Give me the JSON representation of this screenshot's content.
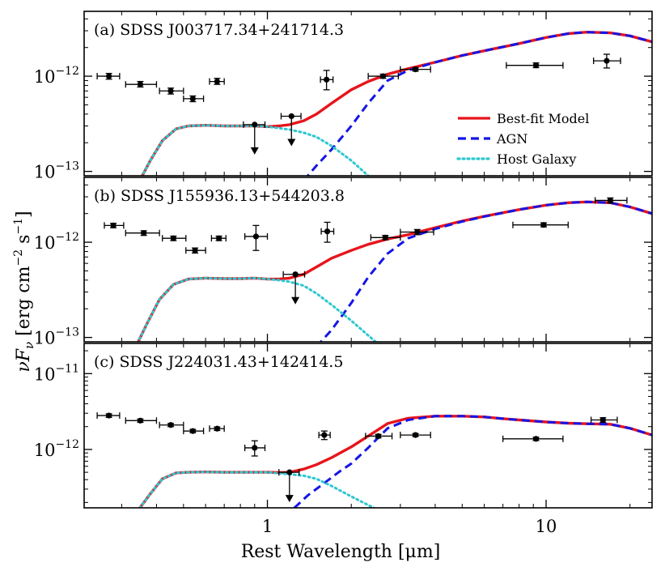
{
  "figure": {
    "ylabel": "νF",
    "ylabel_sub": "ν",
    "ylabel_units": " [erg cm",
    "ylabel_exp1": "−2",
    "ylabel_s": " s",
    "ylabel_exp2": "−1",
    "ylabel_close": "]",
    "xlabel": "Rest Wavelength [μm]",
    "xlim": [
      0.22,
      24
    ],
    "xticks": [
      {
        "v": 1,
        "label": "1"
      },
      {
        "v": 10,
        "label": "10"
      }
    ]
  },
  "legend": {
    "items": [
      {
        "label": "Best-fit Model",
        "color": "#e8141b",
        "style": "solid"
      },
      {
        "label": "AGN",
        "color": "#1515e6",
        "style": "dashed"
      },
      {
        "label": "Host Galaxy",
        "color": "#2ec7d0",
        "style": "dotted"
      }
    ]
  },
  "chart_data": [
    {
      "type": "line",
      "title": "(a) SDSS J003717.34+241714.3",
      "xlabel": "Rest Wavelength [μm]",
      "ylabel": "νFν [erg cm−2 s−1]",
      "ylim": [
        9e-14,
        4.8e-12
      ],
      "yticks": [
        {
          "v": 1e-13,
          "base": "10",
          "exp": "−13"
        },
        {
          "v": 1e-12,
          "base": "10",
          "exp": "−12"
        }
      ],
      "series": [
        {
          "name": "Best-fit Model",
          "color": "#e8141b",
          "x": [
            0.34,
            0.38,
            0.42,
            0.47,
            0.52,
            0.6,
            0.7,
            0.8,
            0.9,
            1.0,
            1.1,
            1.2,
            1.35,
            1.5,
            1.7,
            2.0,
            2.3,
            2.7,
            3.2,
            4.0,
            5.0,
            6.0,
            8.0,
            10.0,
            12.0,
            14.0,
            17.0,
            20.0,
            24.0
          ],
          "y": [
            7e-14,
            1.3e-13,
            2.1e-13,
            2.8e-13,
            3e-13,
            3.05e-13,
            3e-13,
            3e-13,
            3e-13,
            2.95e-13,
            3e-13,
            3.1e-13,
            3.4e-13,
            4e-13,
            5.2e-13,
            7.2e-13,
            8.8e-13,
            1.05e-12,
            1.2e-12,
            1.4e-12,
            1.65e-12,
            1.85e-12,
            2.2e-12,
            2.55e-12,
            2.8e-12,
            2.9e-12,
            2.85e-12,
            2.65e-12,
            2.3e-12
          ]
        },
        {
          "name": "AGN",
          "color": "#1515e6",
          "x": [
            1.35,
            1.5,
            1.7,
            2.0,
            2.3,
            2.7,
            3.2,
            4.0,
            5.0,
            6.0,
            8.0,
            10.0,
            12.0,
            14.0,
            17.0,
            20.0,
            24.0
          ],
          "y": [
            8e-14,
            1.15e-13,
            1.7e-13,
            3e-13,
            5.2e-13,
            9e-13,
            1.15e-12,
            1.4e-12,
            1.65e-12,
            1.85e-12,
            2.2e-12,
            2.55e-12,
            2.8e-12,
            2.9e-12,
            2.85e-12,
            2.65e-12,
            2.3e-12
          ]
        },
        {
          "name": "Host Galaxy",
          "color": "#2ec7d0",
          "x": [
            0.34,
            0.38,
            0.42,
            0.47,
            0.52,
            0.6,
            0.7,
            0.8,
            0.9,
            1.0,
            1.1,
            1.2,
            1.35,
            1.5,
            1.7,
            2.0,
            2.3
          ],
          "y": [
            7e-14,
            1.3e-13,
            2.1e-13,
            2.8e-13,
            3e-13,
            3.05e-13,
            3e-13,
            3e-13,
            3e-13,
            2.95e-13,
            2.85e-13,
            2.75e-13,
            2.55e-13,
            2.3e-13,
            1.85e-13,
            1.3e-13,
            9e-14
          ]
        }
      ],
      "points": [
        {
          "x": 0.27,
          "y": 1e-12,
          "xerr": [
            0.245,
            0.295
          ],
          "yerr": [
            9.3e-13,
            1.07e-12
          ]
        },
        {
          "x": 0.35,
          "y": 8.2e-13,
          "xerr": [
            0.31,
            0.4
          ],
          "yerr": [
            7.7e-13,
            8.8e-13
          ]
        },
        {
          "x": 0.45,
          "y": 7e-13,
          "xerr": [
            0.41,
            0.5
          ],
          "yerr": [
            6.5e-13,
            7.5e-13
          ]
        },
        {
          "x": 0.54,
          "y": 5.8e-13,
          "xerr": [
            0.5,
            0.59
          ],
          "yerr": [
            5.4e-13,
            6.2e-13
          ]
        },
        {
          "x": 0.66,
          "y": 8.8e-13,
          "xerr": [
            0.62,
            0.7
          ],
          "yerr": [
            8.2e-13,
            9.5e-13
          ]
        },
        {
          "x": 0.9,
          "y": 3.1e-13,
          "xerr": [
            0.82,
            0.98
          ],
          "upper": true
        },
        {
          "x": 1.22,
          "y": 3.8e-13,
          "xerr": [
            1.12,
            1.32
          ],
          "upper": true
        },
        {
          "x": 1.63,
          "y": 9.2e-13,
          "xerr": [
            1.55,
            1.72
          ],
          "yerr": [
            7.2e-13,
            1.15e-12
          ]
        },
        {
          "x": 2.6,
          "y": 1e-12,
          "xerr": [
            2.3,
            2.95
          ],
          "yerr": [
            9.5e-13,
            1.05e-12
          ]
        },
        {
          "x": 3.4,
          "y": 1.18e-12,
          "xerr": [
            3.0,
            3.85
          ],
          "yerr": [
            1.13e-12,
            1.23e-12
          ]
        },
        {
          "x": 9.2,
          "y": 1.3e-12,
          "xerr": [
            7.2,
            11.5
          ],
          "yerr": [
            1.23e-12,
            1.38e-12
          ]
        },
        {
          "x": 16.5,
          "y": 1.45e-12,
          "xerr": [
            14.8,
            18.5
          ],
          "yerr": [
            1.22e-12,
            1.7e-12
          ]
        }
      ]
    },
    {
      "type": "line",
      "title": "(b) SDSS J155936.13+544203.8",
      "xlabel": "Rest Wavelength [μm]",
      "ylabel": "νFν [erg cm−2 s−1]",
      "ylim": [
        9e-14,
        4.8e-12
      ],
      "yticks": [
        {
          "v": 1e-13,
          "base": "10",
          "exp": "−13"
        },
        {
          "v": 1e-12,
          "base": "10",
          "exp": "−12"
        }
      ],
      "series": [
        {
          "name": "Best-fit Model",
          "color": "#e8141b",
          "x": [
            0.33,
            0.37,
            0.41,
            0.46,
            0.52,
            0.6,
            0.7,
            0.8,
            0.9,
            1.0,
            1.1,
            1.2,
            1.35,
            1.5,
            1.7,
            2.0,
            2.3,
            2.7,
            3.2,
            4.0,
            5.0,
            6.0,
            8.0,
            10.0,
            12.0,
            14.0,
            17.0,
            20.0,
            24.0
          ],
          "y": [
            7e-14,
            1.4e-13,
            2.5e-13,
            3.6e-13,
            4.1e-13,
            4.2e-13,
            4.15e-13,
            4.15e-13,
            4.2e-13,
            4.1e-13,
            4.1e-13,
            4.2e-13,
            4.6e-13,
            5.5e-13,
            6.8e-13,
            8.2e-13,
            9.5e-13,
            1.08e-12,
            1.2e-12,
            1.42e-12,
            1.67e-12,
            1.87e-12,
            2.2e-12,
            2.45e-12,
            2.6e-12,
            2.65e-12,
            2.6e-12,
            2.35e-12,
            2e-12
          ]
        },
        {
          "name": "AGN",
          "color": "#1515e6",
          "x": [
            1.5,
            1.7,
            2.0,
            2.3,
            2.7,
            3.2,
            4.0,
            5.0,
            6.0,
            8.0,
            10.0,
            12.0,
            14.0,
            17.0,
            20.0,
            24.0
          ],
          "y": [
            8e-14,
            1.2e-13,
            2.3e-13,
            4.3e-13,
            7.6e-13,
            1.1e-12,
            1.38e-12,
            1.65e-12,
            1.86e-12,
            2.2e-12,
            2.45e-12,
            2.6e-12,
            2.65e-12,
            2.6e-12,
            2.35e-12,
            2e-12
          ]
        },
        {
          "name": "Host Galaxy",
          "color": "#2ec7d0",
          "x": [
            0.33,
            0.37,
            0.41,
            0.46,
            0.52,
            0.6,
            0.7,
            0.8,
            0.9,
            1.0,
            1.1,
            1.2,
            1.35,
            1.5,
            1.7,
            2.0,
            2.3,
            2.5
          ],
          "y": [
            7e-14,
            1.4e-13,
            2.5e-13,
            3.6e-13,
            4.1e-13,
            4.2e-13,
            4.15e-13,
            4.15e-13,
            4.2e-13,
            4.1e-13,
            4e-13,
            3.85e-13,
            3.5e-13,
            2.9e-13,
            2.2e-13,
            1.5e-13,
            1.05e-13,
            8.5e-14
          ]
        }
      ],
      "points": [
        {
          "x": 0.28,
          "y": 1.5e-12,
          "xerr": [
            0.26,
            0.305
          ],
          "yerr": [
            1.42e-12,
            1.58e-12
          ]
        },
        {
          "x": 0.36,
          "y": 1.25e-12,
          "xerr": [
            0.31,
            0.41
          ],
          "yerr": [
            1.18e-12,
            1.32e-12
          ]
        },
        {
          "x": 0.46,
          "y": 1.1e-12,
          "xerr": [
            0.42,
            0.51
          ],
          "yerr": [
            1.04e-12,
            1.16e-12
          ]
        },
        {
          "x": 0.55,
          "y": 8.2e-13,
          "xerr": [
            0.51,
            0.6
          ],
          "yerr": [
            7.7e-13,
            8.7e-13
          ]
        },
        {
          "x": 0.67,
          "y": 1.1e-12,
          "xerr": [
            0.63,
            0.71
          ],
          "yerr": [
            1.04e-12,
            1.16e-12
          ]
        },
        {
          "x": 0.91,
          "y": 1.15e-12,
          "xerr": [
            0.83,
            1.0
          ],
          "yerr": [
            8.2e-13,
            1.5e-12
          ]
        },
        {
          "x": 1.26,
          "y": 4.6e-13,
          "xerr": [
            1.14,
            1.36
          ],
          "upper": true
        },
        {
          "x": 1.64,
          "y": 1.3e-12,
          "xerr": [
            1.56,
            1.73
          ],
          "yerr": [
            1e-12,
            1.62e-12
          ]
        },
        {
          "x": 2.65,
          "y": 1.12e-12,
          "xerr": [
            2.35,
            3.0
          ],
          "yerr": [
            1.06e-12,
            1.18e-12
          ]
        },
        {
          "x": 3.45,
          "y": 1.28e-12,
          "xerr": [
            3.0,
            3.95
          ],
          "yerr": [
            1.2e-12,
            1.36e-12
          ]
        },
        {
          "x": 9.8,
          "y": 1.52e-12,
          "xerr": [
            7.6,
            12.0
          ],
          "yerr": [
            1.45e-12,
            1.6e-12
          ]
        },
        {
          "x": 17.0,
          "y": 2.75e-12,
          "xerr": [
            15.0,
            19.5
          ],
          "yerr": [
            2.58e-12,
            2.92e-12
          ]
        }
      ]
    },
    {
      "type": "line",
      "title": "(c) SDSS J224031.43+142414.5",
      "xlabel": "Rest Wavelength [μm]",
      "ylabel": "νFν [erg cm−2 s−1]",
      "ylim": [
        1.7e-13,
        2.5e-11
      ],
      "yticks": [
        {
          "v": 1e-12,
          "base": "10",
          "exp": "−12"
        },
        {
          "v": 1e-11,
          "base": "10",
          "exp": "−11"
        }
      ],
      "series": [
        {
          "name": "Best-fit Model",
          "color": "#e8141b",
          "x": [
            0.34,
            0.38,
            0.42,
            0.47,
            0.52,
            0.6,
            0.7,
            0.8,
            0.9,
            1.0,
            1.1,
            1.2,
            1.35,
            1.5,
            1.7,
            2.0,
            2.3,
            2.7,
            3.2,
            4.0,
            5.0,
            6.0,
            7.0,
            8.0,
            10.0,
            12.0,
            14.0,
            17.0,
            20.0,
            24.0
          ],
          "y": [
            1.5e-13,
            2.6e-13,
            4.1e-13,
            4.9e-13,
            5e-13,
            5.05e-13,
            5e-13,
            5e-13,
            5e-13,
            5e-13,
            4.95e-13,
            5e-13,
            5.5e-13,
            6.3e-13,
            7.8e-13,
            1.08e-12,
            1.5e-12,
            2.2e-12,
            2.58e-12,
            2.75e-12,
            2.75e-12,
            2.68e-12,
            2.55e-12,
            2.45e-12,
            2.3e-12,
            2.22e-12,
            2.18e-12,
            2.15e-12,
            1.9e-12,
            1.55e-12
          ]
        },
        {
          "name": "AGN",
          "color": "#1515e6",
          "x": [
            1.25,
            1.4,
            1.6,
            1.8,
            2.0,
            2.3,
            2.7,
            3.2,
            4.0,
            5.0,
            6.0,
            7.0,
            8.0,
            10.0,
            12.0,
            14.0,
            17.0,
            20.0,
            24.0
          ],
          "y": [
            1.7e-13,
            2.5e-13,
            3.6e-13,
            5e-13,
            6.5e-13,
            1.05e-12,
            1.9e-12,
            2.45e-12,
            2.75e-12,
            2.75e-12,
            2.68e-12,
            2.55e-12,
            2.45e-12,
            2.3e-12,
            2.22e-12,
            2.18e-12,
            2.15e-12,
            1.9e-12,
            1.55e-12
          ]
        },
        {
          "name": "Host Galaxy",
          "color": "#2ec7d0",
          "x": [
            0.34,
            0.38,
            0.42,
            0.47,
            0.52,
            0.6,
            0.7,
            0.8,
            0.9,
            1.0,
            1.1,
            1.2,
            1.35,
            1.5,
            1.7,
            2.0,
            2.3,
            2.45
          ],
          "y": [
            1.5e-13,
            2.6e-13,
            4.1e-13,
            4.9e-13,
            5e-13,
            5.05e-13,
            5e-13,
            5e-13,
            5e-13,
            5e-13,
            4.85e-13,
            4.7e-13,
            4.5e-13,
            4.1e-13,
            3.3e-13,
            2.4e-13,
            1.85e-13,
            1.65e-13
          ]
        }
      ],
      "points": [
        {
          "x": 0.27,
          "y": 2.8e-12,
          "xerr": [
            0.245,
            0.295
          ],
          "yerr": [
            2.65e-12,
            2.95e-12
          ]
        },
        {
          "x": 0.35,
          "y": 2.4e-12,
          "xerr": [
            0.31,
            0.4
          ],
          "yerr": [
            2.28e-12,
            2.52e-12
          ]
        },
        {
          "x": 0.45,
          "y": 2.1e-12,
          "xerr": [
            0.41,
            0.5
          ],
          "yerr": [
            2e-12,
            2.2e-12
          ]
        },
        {
          "x": 0.54,
          "y": 1.75e-12,
          "xerr": [
            0.5,
            0.59
          ],
          "yerr": [
            1.66e-12,
            1.84e-12
          ]
        },
        {
          "x": 0.66,
          "y": 1.88e-12,
          "xerr": [
            0.62,
            0.7
          ],
          "yerr": [
            1.78e-12,
            1.98e-12
          ]
        },
        {
          "x": 0.9,
          "y": 1.05e-12,
          "xerr": [
            0.83,
            0.98
          ],
          "yerr": [
            8.2e-13,
            1.3e-12
          ]
        },
        {
          "x": 1.2,
          "y": 5e-13,
          "xerr": [
            1.1,
            1.3
          ],
          "upper": true
        },
        {
          "x": 1.6,
          "y": 1.55e-12,
          "xerr": [
            1.53,
            1.68
          ],
          "yerr": [
            1.35e-12,
            1.75e-12
          ]
        },
        {
          "x": 2.5,
          "y": 1.5e-12,
          "xerr": [
            2.25,
            2.8
          ],
          "yerr": [
            1.42e-12,
            1.58e-12
          ]
        },
        {
          "x": 3.4,
          "y": 1.55e-12,
          "xerr": [
            3.0,
            3.85
          ],
          "yerr": [
            1.48e-12,
            1.62e-12
          ]
        },
        {
          "x": 9.2,
          "y": 1.38e-12,
          "xerr": [
            7.0,
            11.5
          ],
          "yerr": [
            1.31e-12,
            1.45e-12
          ]
        },
        {
          "x": 16.0,
          "y": 2.45e-12,
          "xerr": [
            14.5,
            18.0
          ],
          "yerr": [
            2.28e-12,
            2.62e-12
          ]
        }
      ]
    }
  ]
}
